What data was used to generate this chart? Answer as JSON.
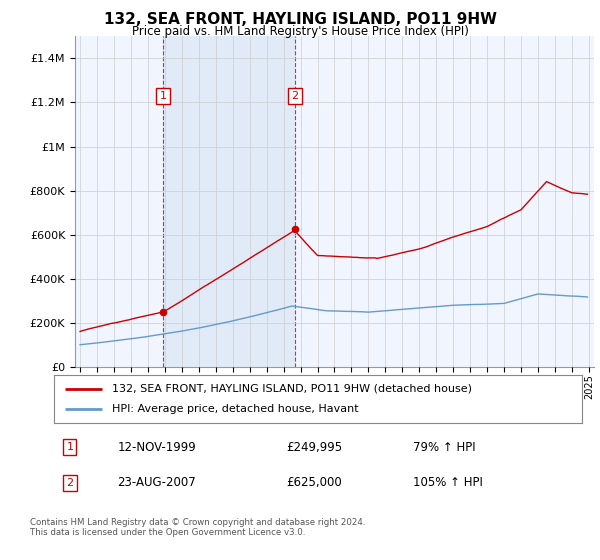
{
  "title": "132, SEA FRONT, HAYLING ISLAND, PO11 9HW",
  "subtitle": "Price paid vs. HM Land Registry's House Price Index (HPI)",
  "footer": "Contains HM Land Registry data © Crown copyright and database right 2024.\nThis data is licensed under the Open Government Licence v3.0.",
  "legend_line1": "132, SEA FRONT, HAYLING ISLAND, PO11 9HW (detached house)",
  "legend_line2": "HPI: Average price, detached house, Havant",
  "transaction1_date": "12-NOV-1999",
  "transaction1_price": "£249,995",
  "transaction1_hpi": "79% ↑ HPI",
  "transaction2_date": "23-AUG-2007",
  "transaction2_price": "£625,000",
  "transaction2_hpi": "105% ↑ HPI",
  "red_line_color": "#cc0000",
  "blue_line_color": "#6699cc",
  "background_color": "#ffffff",
  "plot_bg_color": "#f0f5ff",
  "shade_color": "#dce8f5",
  "grid_color": "#cccccc",
  "vline_color": "#cc0000",
  "ylim": [
    0,
    1500000
  ],
  "yticks": [
    0,
    200000,
    400000,
    600000,
    800000,
    1000000,
    1200000,
    1400000
  ],
  "xlim_start": 1994.7,
  "xlim_end": 2025.3,
  "transaction1_x": 1999.88,
  "transaction2_x": 2007.65,
  "transaction1_y": 249995,
  "transaction2_y": 625000
}
